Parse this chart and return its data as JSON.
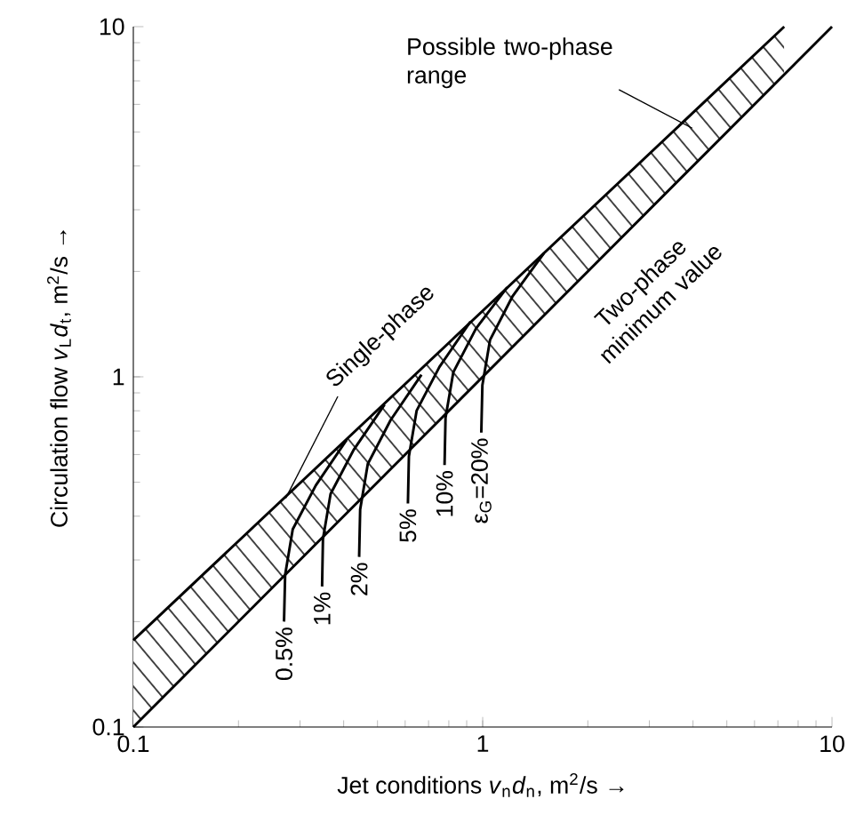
{
  "chart_data": {
    "type": "line",
    "xlabel": "Jet conditions *v*$_{n}$*d*$_{n}$, m$^{2}$/s →",
    "ylabel": "Circulation flow *v*$_{L}$*d*$_{t}$, m$^{2}$/s →",
    "log": "xy",
    "xlim": [
      0.1,
      10
    ],
    "ylim": [
      0.1,
      10
    ],
    "xticks": [
      0.1,
      1,
      10
    ],
    "yticks": [
      0.1,
      1,
      10
    ],
    "marker": "none",
    "line_style": "solid",
    "series": [
      {
        "x": [
          0.1,
          7.3
        ],
        "values": [
          0.177,
          10
        ],
        "lower": [
          0.1,
          7.3
        ],
        "upper": [
          0.177,
          10
        ],
        "color": "#000000"
      },
      {
        "x": [
          0.1,
          10
        ],
        "values": [
          0.1,
          10
        ],
        "color": "#000000"
      },
      {
        "x": [
          0.27,
          0.272,
          0.286,
          0.333,
          0.408
        ],
        "values": [
          0.2,
          0.272,
          0.367,
          0.49,
          0.661
        ],
        "color": "#000000"
      },
      {
        "x": [
          0.347,
          0.349,
          0.367,
          0.427,
          0.524
        ],
        "values": [
          0.252,
          0.344,
          0.463,
          0.618,
          0.834
        ],
        "color": "#000000"
      },
      {
        "x": [
          0.443,
          0.446,
          0.469,
          0.545,
          0.668
        ],
        "values": [
          0.306,
          0.418,
          0.564,
          0.752,
          1.014
        ],
        "color": "#000000"
      },
      {
        "x": [
          0.611,
          0.615,
          0.647,
          0.752,
          0.923
        ],
        "values": [
          0.435,
          0.593,
          0.8,
          1.067,
          1.439
        ],
        "color": "#000000"
      },
      {
        "x": [
          0.778,
          0.783,
          0.824,
          0.957,
          1.175
        ],
        "values": [
          0.56,
          0.764,
          1.03,
          1.374,
          1.8
        ],
        "color": "#000000"
      },
      {
        "x": [
          0.991,
          0.998,
          1.05,
          1.219,
          1.496
        ],
        "values": [
          0.693,
          0.946,
          1.276,
          1.702,
          2.25
        ],
        "color": "#000000"
      }
    ],
    "annotations": [
      {
        "text": "Single-phase",
        "x": 0.273,
        "y": 0.45
      },
      "Two-phase minimum value",
      "Possible two-phase range",
      {
        "text": "0.5%",
        "x": 0.27,
        "y": 0.2
      },
      {
        "text": "1%",
        "x": 0.347,
        "y": 0.252
      },
      {
        "text": "2%",
        "x": 0.443,
        "y": 0.306
      },
      {
        "text": "5%",
        "x": 0.611,
        "y": 0.435
      },
      {
        "text": "10%",
        "x": 0.778,
        "y": 0.56
      },
      {
        "text": "ε$_{G}$=20%",
        "x": 0.991,
        "y": 0.693
      }
    ]
  }
}
